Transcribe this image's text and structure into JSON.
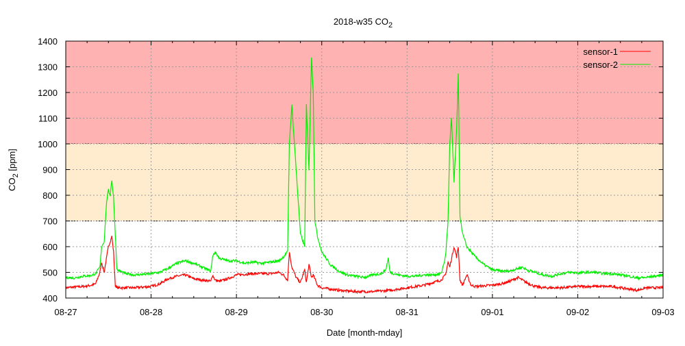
{
  "chart_data": {
    "type": "line",
    "title": "2018-w35 CO",
    "title_sub": "2",
    "xlabel": "Date [month-mday]",
    "ylabel": "CO",
    "ylabel_sub": "2",
    "ylabel_unit": " [ppm]",
    "xlim": [
      0,
      7
    ],
    "ylim": [
      400,
      1400
    ],
    "x_unit": "days since 08-27",
    "xticks": [
      "08-27",
      "08-28",
      "08-29",
      "08-30",
      "08-31",
      "09-01",
      "09-02",
      "09-03"
    ],
    "yticks": [
      400,
      500,
      600,
      700,
      800,
      900,
      1000,
      1100,
      1200,
      1300,
      1400
    ],
    "grid": true,
    "legend_position": "top-right",
    "bands": [
      {
        "from": 1000,
        "to": 1400,
        "color": "#ffb2b2"
      },
      {
        "from": 700,
        "to": 1000,
        "color": "#ffebcd"
      }
    ],
    "series": [
      {
        "name": "sensor-1",
        "color": "#ff0000",
        "x": [
          0,
          0.2,
          0.3,
          0.35,
          0.4,
          0.42,
          0.45,
          0.48,
          0.5,
          0.52,
          0.54,
          0.56,
          0.58,
          0.6,
          0.8,
          1.0,
          1.1,
          1.2,
          1.3,
          1.4,
          1.5,
          1.6,
          1.7,
          1.72,
          1.75,
          1.8,
          1.9,
          2.0,
          2.2,
          2.4,
          2.5,
          2.55,
          2.6,
          2.62,
          2.65,
          2.7,
          2.75,
          2.8,
          2.82,
          2.85,
          2.88,
          2.9,
          2.95,
          3.0,
          3.2,
          3.4,
          3.6,
          3.8,
          4.0,
          4.2,
          4.3,
          4.4,
          4.45,
          4.48,
          4.5,
          4.55,
          4.58,
          4.6,
          4.62,
          4.65,
          4.7,
          4.75,
          4.8,
          5.0,
          5.1,
          5.2,
          5.3,
          5.4,
          5.5,
          5.6,
          5.8,
          6.0,
          6.2,
          6.4,
          6.6,
          6.7,
          6.8,
          7.0
        ],
        "y": [
          440,
          445,
          450,
          455,
          500,
          540,
          500,
          560,
          600,
          620,
          640,
          580,
          450,
          440,
          440,
          445,
          455,
          475,
          485,
          490,
          475,
          470,
          465,
          490,
          470,
          465,
          475,
          490,
          495,
          495,
          500,
          490,
          470,
          580,
          520,
          480,
          460,
          510,
          460,
          530,
          480,
          490,
          450,
          440,
          430,
          425,
          425,
          430,
          440,
          450,
          460,
          470,
          490,
          540,
          520,
          600,
          560,
          600,
          470,
          450,
          490,
          450,
          445,
          450,
          455,
          465,
          480,
          460,
          445,
          440,
          440,
          445,
          445,
          445,
          435,
          430,
          440,
          440
        ]
      },
      {
        "name": "sensor-2",
        "color": "#00ee00",
        "x": [
          0,
          0.1,
          0.2,
          0.3,
          0.35,
          0.4,
          0.42,
          0.45,
          0.48,
          0.5,
          0.52,
          0.54,
          0.56,
          0.58,
          0.6,
          0.7,
          0.8,
          0.9,
          1.0,
          1.1,
          1.2,
          1.3,
          1.4,
          1.5,
          1.6,
          1.7,
          1.72,
          1.75,
          1.8,
          1.9,
          2.0,
          2.1,
          2.2,
          2.3,
          2.4,
          2.5,
          2.55,
          2.6,
          2.62,
          2.65,
          2.7,
          2.75,
          2.8,
          2.82,
          2.85,
          2.88,
          2.9,
          2.92,
          2.95,
          3.0,
          3.1,
          3.2,
          3.3,
          3.4,
          3.5,
          3.6,
          3.7,
          3.75,
          3.78,
          3.8,
          3.9,
          4.0,
          4.1,
          4.2,
          4.3,
          4.4,
          4.45,
          4.48,
          4.5,
          4.52,
          4.55,
          4.58,
          4.6,
          4.62,
          4.65,
          4.7,
          4.8,
          4.9,
          5.0,
          5.1,
          5.2,
          5.3,
          5.35,
          5.4,
          5.5,
          5.6,
          5.7,
          5.8,
          5.9,
          6.0,
          6.1,
          6.2,
          6.3,
          6.4,
          6.5,
          6.6,
          6.7,
          6.8,
          6.9,
          7.0
        ],
        "y": [
          480,
          478,
          485,
          488,
          495,
          520,
          600,
          620,
          780,
          820,
          800,
          860,
          790,
          650,
          510,
          495,
          490,
          492,
          495,
          500,
          515,
          535,
          545,
          535,
          520,
          505,
          560,
          580,
          555,
          545,
          545,
          535,
          540,
          535,
          540,
          545,
          560,
          580,
          1000,
          1150,
          900,
          650,
          600,
          1150,
          900,
          1340,
          1200,
          700,
          640,
          580,
          530,
          505,
          490,
          485,
          480,
          490,
          495,
          510,
          555,
          500,
          490,
          485,
          485,
          490,
          490,
          495,
          560,
          700,
          1000,
          1100,
          850,
          1050,
          1270,
          720,
          650,
          600,
          560,
          530,
          510,
          505,
          505,
          515,
          520,
          510,
          500,
          490,
          485,
          495,
          500,
          498,
          500,
          500,
          495,
          495,
          490,
          485,
          478,
          480,
          485,
          490
        ]
      }
    ]
  }
}
